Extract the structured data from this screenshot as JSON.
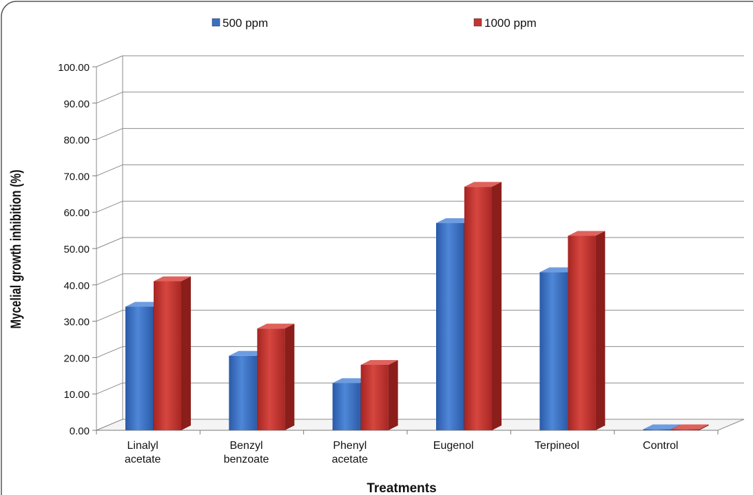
{
  "chart_data": {
    "type": "bar",
    "style": "3d-clustered-column",
    "title": "",
    "xlabel": "Treatments",
    "ylabel": "Mycelial growth  inhibition (%)",
    "ylim": [
      0,
      100
    ],
    "yticks": [
      "0.00",
      "10.00",
      "20.00",
      "30.00",
      "40.00",
      "50.00",
      "60.00",
      "70.00",
      "80.00",
      "90.00",
      "100.00"
    ],
    "grid": true,
    "legend_position": "top",
    "categories": [
      [
        "Linalyl",
        "acetate"
      ],
      [
        "Benzyl",
        "benzoate"
      ],
      [
        "Phenyl",
        "acetate"
      ],
      [
        "Eugenol"
      ],
      [
        "Terpineol"
      ],
      [
        "Control"
      ]
    ],
    "series": [
      {
        "name": "500 ppm",
        "color": "#3b6fc2",
        "values": [
          34.0,
          20.5,
          13.0,
          57.0,
          43.5,
          0.0
        ]
      },
      {
        "name": "1000 ppm",
        "color": "#c33531",
        "values": [
          41.0,
          28.0,
          18.0,
          67.0,
          53.5,
          0.0
        ]
      }
    ]
  }
}
